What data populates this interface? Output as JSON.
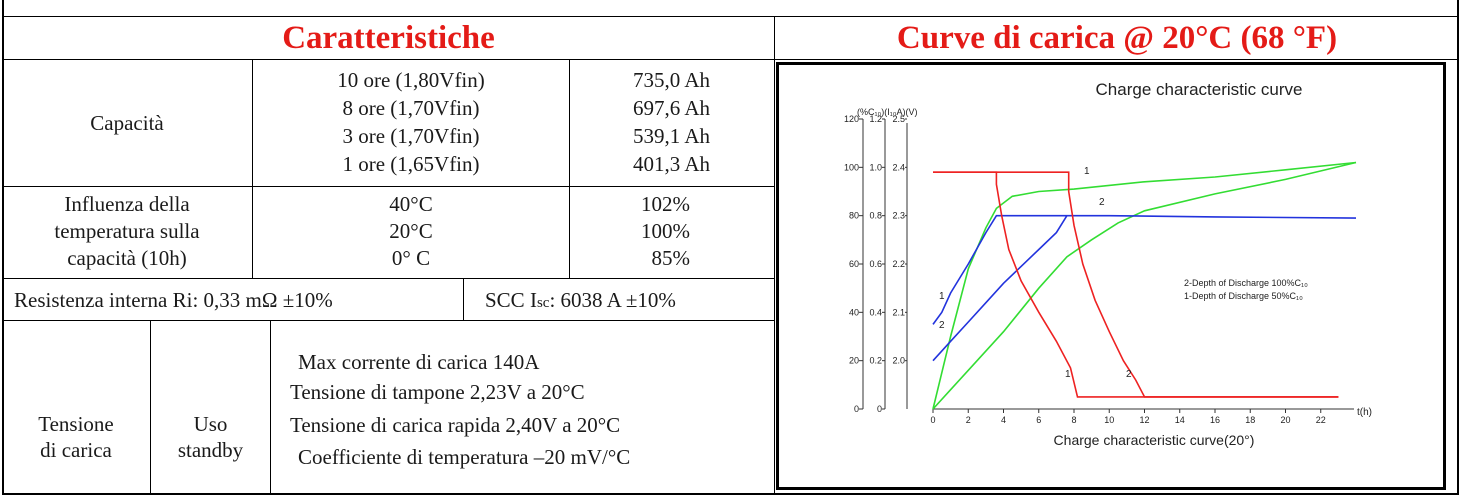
{
  "left_title": "Caratteristiche",
  "right_title": "Curve di carica @ 20°C (68 °F)",
  "capacity": {
    "label": "Capacità",
    "rows": [
      {
        "cond": "10 ore (1,80Vfin)",
        "value": "735,0 Ah"
      },
      {
        "cond": "8 ore (1,70Vfin)",
        "value": "697,6 Ah"
      },
      {
        "cond": "3 ore (1,70Vfin)",
        "value": "539,1 Ah"
      },
      {
        "cond": "1 ore (1,65Vfin)",
        "value": "401,3 Ah"
      }
    ]
  },
  "temperature": {
    "label_lines": [
      "Influenza della",
      "temperatura sulla",
      "capacità (10h)"
    ],
    "rows": [
      {
        "temp": "40°C",
        "value": "102%"
      },
      {
        "temp": "20°C",
        "value": "100%"
      },
      {
        "temp": "0° C",
        "value": "85%"
      }
    ]
  },
  "resistance": {
    "internal": "Resistenza interna Ri: 0,33 mΩ ±10%",
    "scc_prefix": "SCC I",
    "scc_sub": "sc",
    "scc_suffix": ": 6038 A ±10%"
  },
  "charging": {
    "label_lines": [
      "Tensione",
      "di carica"
    ],
    "use_lines": [
      "Uso",
      "standby"
    ],
    "specs": [
      "Max corrente di carica 140A",
      "Tensione di tampone 2,23V a 20°C",
      "Tensione di carica rapida 2,40V a 20°C",
      "Coefficiente di temperatura –20 mV/°C"
    ]
  },
  "chart_data": {
    "type": "line",
    "title": "Charge characteristic curve",
    "xlabel": "Charge characteristic curve(20°)",
    "x_unit": "t(h)",
    "y_header": "(%C₁₀)(I₁₀A)(V)",
    "xlim": [
      0,
      24
    ],
    "ylim": [
      0,
      120
    ],
    "x_ticks": [
      0,
      2,
      4,
      6,
      8,
      10,
      12,
      14,
      16,
      18,
      20,
      22
    ],
    "y_axes": {
      "percent": [
        "0",
        "20",
        "40",
        "60",
        "80",
        "100",
        "120"
      ],
      "current": [
        "0",
        "0.2",
        "0.4",
        "0.6",
        "0.8",
        "1.0",
        "1.2"
      ],
      "voltage": [
        "2.0",
        "2.1",
        "2.2",
        "2.3",
        "2.4",
        "2.5"
      ]
    },
    "legend": [
      "2-Depth of Discharge 100%C₁₀",
      "1-Depth of Discharge 50%C₁₀"
    ],
    "curve_labels": [
      "1",
      "2",
      "1",
      "2",
      "1",
      "2"
    ],
    "colors": {
      "capacity": "#33dd33",
      "voltage": "#2233dd",
      "current": "#ee2222"
    },
    "series": [
      {
        "color_key": "capacity",
        "x": [
          0,
          1,
          2,
          3,
          3.6,
          4.5,
          6,
          8,
          12,
          16,
          20,
          24
        ],
        "y": [
          0,
          30,
          58,
          75,
          83,
          88,
          90,
          91,
          94,
          96,
          99,
          102
        ]
      },
      {
        "color_key": "capacity",
        "x": [
          0,
          1,
          2,
          4,
          6,
          7.6,
          9,
          10.5,
          12,
          16,
          20,
          24
        ],
        "y": [
          0,
          8,
          16,
          32,
          50,
          63,
          70,
          77,
          82,
          89,
          95,
          102
        ]
      },
      {
        "color_key": "voltage",
        "x": [
          0,
          0.5,
          1,
          2,
          3,
          3.6,
          6,
          10,
          16,
          24
        ],
        "y": [
          35,
          40,
          48,
          60,
          73,
          80,
          80,
          80,
          79.5,
          79
        ]
      },
      {
        "color_key": "voltage",
        "x": [
          0,
          1,
          2,
          3,
          4,
          5,
          6,
          7,
          7.6
        ],
        "y": [
          20,
          28,
          36,
          44,
          52,
          59,
          66,
          73,
          80
        ]
      },
      {
        "color_key": "current",
        "x": [
          0,
          3.6,
          3.6,
          3.9,
          4.3,
          5,
          6,
          7,
          7.8,
          8.2,
          23
        ],
        "y": [
          98,
          98,
          93,
          80,
          66,
          53,
          40,
          28,
          17,
          5,
          5
        ]
      },
      {
        "color_key": "current",
        "x": [
          0,
          7.7,
          7.7,
          8,
          8.5,
          9.2,
          10,
          10.8,
          11.5,
          12,
          23
        ],
        "y": [
          98,
          98,
          90,
          76,
          60,
          45,
          32,
          20,
          12,
          5,
          5
        ]
      }
    ]
  }
}
